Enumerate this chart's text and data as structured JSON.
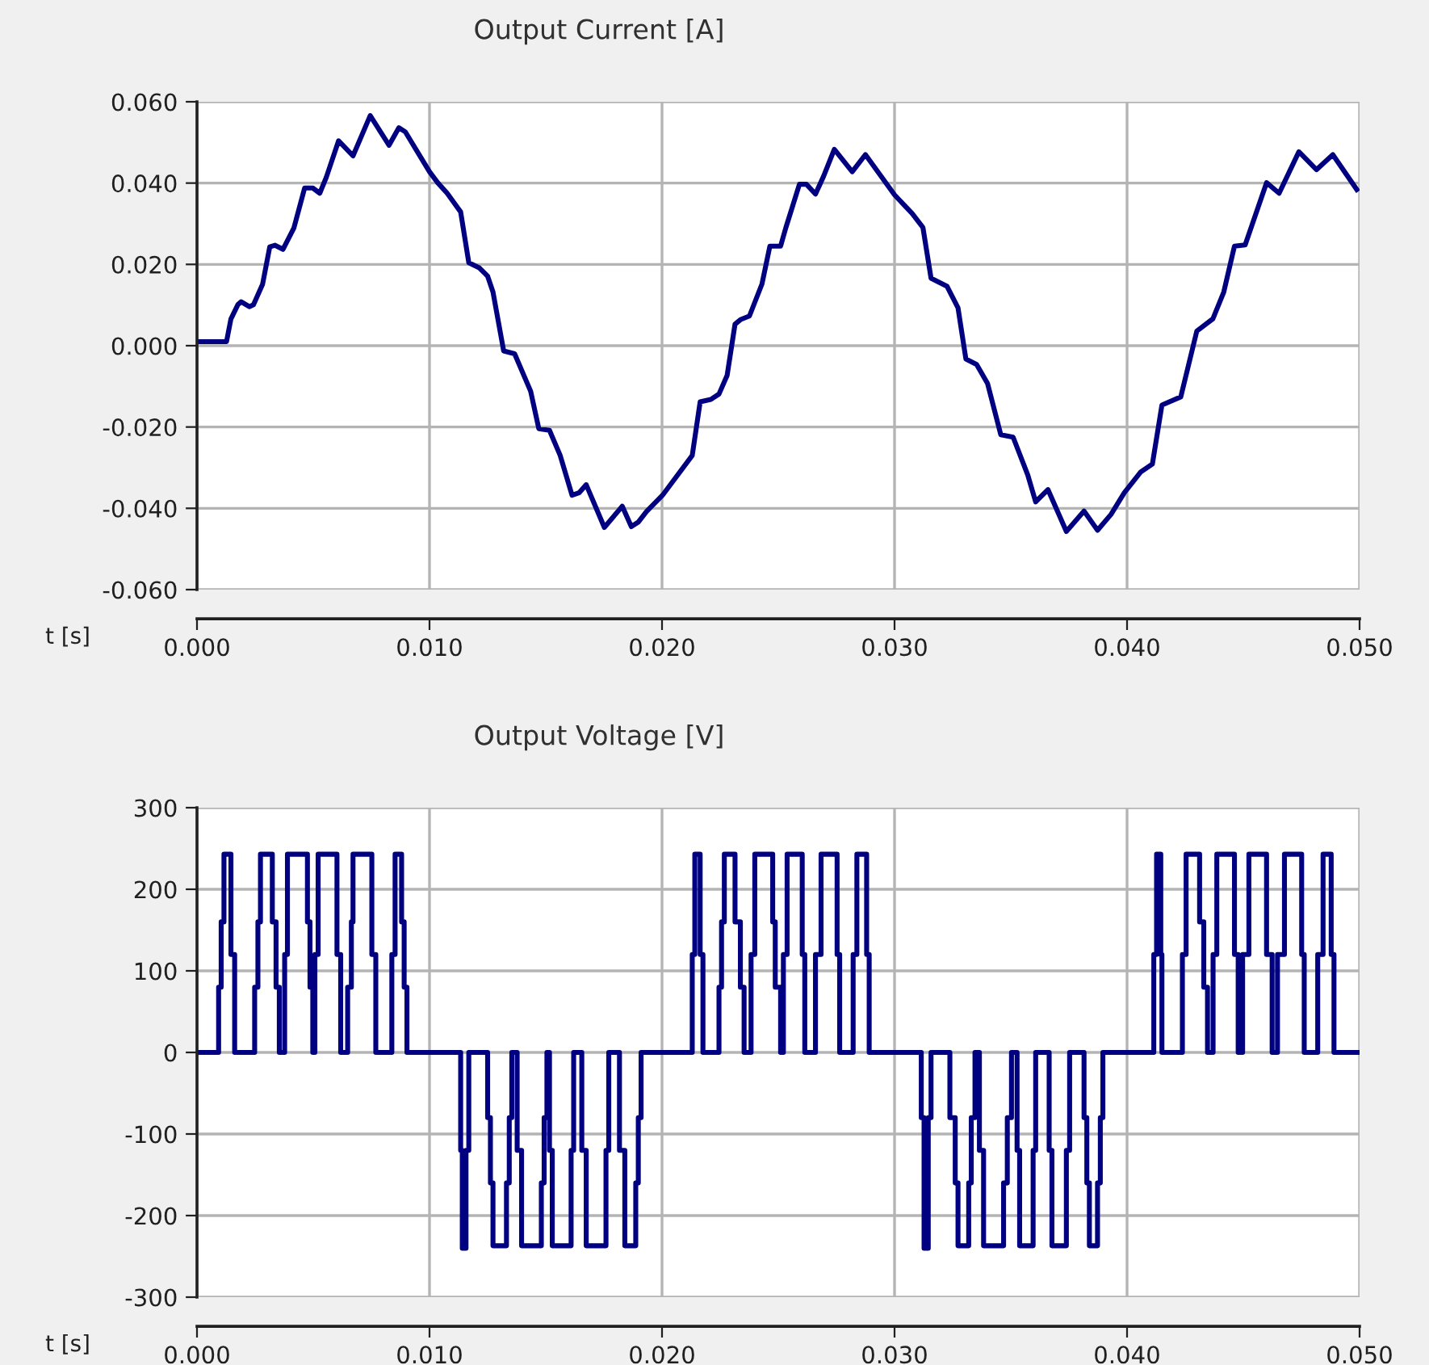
{
  "chart_data": [
    {
      "type": "line",
      "title": "Output Current [A]",
      "xlabel": "t [s]",
      "color": "#000080",
      "grid": true,
      "marker": "none",
      "line_style": "solid",
      "x": [
        0,
        0.00127,
        0.00146,
        0.00176,
        0.0019,
        0.00225,
        0.00243,
        0.00282,
        0.00313,
        0.00336,
        0.0037,
        0.00417,
        0.00463,
        0.00498,
        0.00528,
        0.00556,
        0.00609,
        0.00671,
        0.00745,
        0.00826,
        0.00868,
        0.00896,
        0.01,
        0.01035,
        0.01076,
        0.01134,
        0.01169,
        0.01215,
        0.0125,
        0.01273,
        0.01319,
        0.01366,
        0.01435,
        0.0147,
        0.01516,
        0.01562,
        0.01613,
        0.01643,
        0.01674,
        0.01752,
        0.01829,
        0.01868,
        0.01898,
        0.01933,
        0.02002,
        0.0213,
        0.02164,
        0.0221,
        0.02245,
        0.0228,
        0.02314,
        0.02337,
        0.02376,
        0.0243,
        0.02464,
        0.0251,
        0.02533,
        0.02591,
        0.02621,
        0.0266,
        0.02695,
        0.02741,
        0.02818,
        0.02875,
        0.03,
        0.03076,
        0.03122,
        0.03157,
        0.03226,
        0.03273,
        0.03307,
        0.03353,
        0.034,
        0.03457,
        0.0351,
        0.03573,
        0.03607,
        0.0366,
        0.03739,
        0.03815,
        0.03873,
        0.03931,
        0.03988,
        0.04058,
        0.04109,
        0.0415,
        0.04231,
        0.043,
        0.04369,
        0.04416,
        0.04462,
        0.04508,
        0.046,
        0.04654,
        0.04739,
        0.04815,
        0.04885,
        0.04988
      ],
      "values": [
        0.001,
        0.001,
        0.0066,
        0.0101,
        0.0108,
        0.0096,
        0.0101,
        0.0151,
        0.0243,
        0.0247,
        0.0237,
        0.029,
        0.0388,
        0.0388,
        0.0375,
        0.0414,
        0.0504,
        0.0467,
        0.0566,
        0.0493,
        0.0536,
        0.0526,
        0.0428,
        0.0401,
        0.0375,
        0.0329,
        0.0204,
        0.0191,
        0.0171,
        0.0132,
        -0.0013,
        -0.002,
        -0.0112,
        -0.0204,
        -0.0208,
        -0.027,
        -0.0368,
        -0.0362,
        -0.0342,
        -0.0447,
        -0.0395,
        -0.0445,
        -0.0434,
        -0.0408,
        -0.0368,
        -0.027,
        -0.0138,
        -0.0132,
        -0.0119,
        -0.0073,
        0.0053,
        0.0064,
        0.0073,
        0.0152,
        0.0245,
        0.0245,
        0.0291,
        0.0397,
        0.0397,
        0.0373,
        0.0417,
        0.0483,
        0.0428,
        0.047,
        0.0371,
        0.0325,
        0.0291,
        0.0166,
        0.0146,
        0.0093,
        -0.0033,
        -0.0046,
        -0.0093,
        -0.0219,
        -0.0225,
        -0.0318,
        -0.0384,
        -0.0354,
        -0.0457,
        -0.0407,
        -0.0454,
        -0.0415,
        -0.0362,
        -0.0311,
        -0.0291,
        -0.0146,
        -0.0126,
        0.0036,
        0.0066,
        0.0132,
        0.0245,
        0.0248,
        0.0401,
        0.0375,
        0.0477,
        0.0433,
        0.047,
        0.0384
      ],
      "xlim": [
        0,
        0.05
      ],
      "xticks": [
        {
          "value": 0,
          "label": "0.000"
        },
        {
          "value": 0.01,
          "label": "0.010"
        },
        {
          "value": 0.02,
          "label": "0.020"
        },
        {
          "value": 0.03,
          "label": "0.030"
        },
        {
          "value": 0.04,
          "label": "0.040"
        },
        {
          "value": 0.05,
          "label": "0.050"
        }
      ],
      "ylim": [
        -0.06,
        0.06
      ],
      "yticks": [
        {
          "value": -0.06,
          "label": "-0.060"
        },
        {
          "value": -0.04,
          "label": "-0.040"
        },
        {
          "value": -0.02,
          "label": "-0.020"
        },
        {
          "value": 0,
          "label": "0.000"
        },
        {
          "value": 0.02,
          "label": "0.020"
        },
        {
          "value": 0.04,
          "label": "0.040"
        },
        {
          "value": 0.06,
          "label": "0.060"
        }
      ]
    },
    {
      "type": "step",
      "title": "Output Voltage [V]",
      "xlabel": "t [s]",
      "color": "#000080",
      "grid": true,
      "marker": "none",
      "line_style": "solid",
      "x": [
        0,
        0.00093,
        0.00104,
        0.00116,
        0.00146,
        0.00162,
        0.00248,
        0.00262,
        0.00273,
        0.00324,
        0.0034,
        0.00354,
        0.00377,
        0.00389,
        0.00475,
        0.00486,
        0.00498,
        0.00507,
        0.00521,
        0.00602,
        0.00618,
        0.00648,
        0.00664,
        0.00671,
        0.00752,
        0.00769,
        0.00838,
        0.00852,
        0.0088,
        0.00891,
        0.00903,
        0.01134,
        0.01141,
        0.01157,
        0.01169,
        0.0125,
        0.01262,
        0.01273,
        0.01331,
        0.01343,
        0.01354,
        0.01377,
        0.01396,
        0.01481,
        0.01493,
        0.01505,
        0.01516,
        0.01528,
        0.01609,
        0.0162,
        0.01655,
        0.01674,
        0.01759,
        0.01771,
        0.01817,
        0.0184,
        0.01887,
        0.01898,
        0.0191,
        0.0213,
        0.02141,
        0.02164,
        0.02176,
        0.02245,
        0.02256,
        0.02268,
        0.02314,
        0.02337,
        0.02353,
        0.02383,
        0.02399,
        0.02476,
        0.02487,
        0.0251,
        0.02522,
        0.02538,
        0.02603,
        0.02614,
        0.0266,
        0.02684,
        0.02753,
        0.02764,
        0.02822,
        0.02838,
        0.0288,
        0.02891,
        0.03115,
        0.03127,
        0.03145,
        0.03157,
        0.03238,
        0.03261,
        0.03273,
        0.03319,
        0.0333,
        0.03346,
        0.03365,
        0.03383,
        0.03469,
        0.03485,
        0.03503,
        0.03527,
        0.03538,
        0.03596,
        0.03607,
        0.03665,
        0.03677,
        0.03739,
        0.03753,
        0.03815,
        0.03827,
        0.03838,
        0.03873,
        0.03885,
        0.03896,
        0.04115,
        0.04127,
        0.04145,
        0.0415,
        0.04238,
        0.04254,
        0.04312,
        0.0433,
        0.04346,
        0.0437,
        0.04386,
        0.04462,
        0.04478,
        0.04497,
        0.04524,
        0.046,
        0.04624,
        0.04647,
        0.04677,
        0.04751,
        0.04762,
        0.0482,
        0.04843,
        0.04878,
        0.0489,
        0.05
      ],
      "values": [
        0,
        80,
        160,
        243,
        120,
        0,
        80,
        160,
        243,
        160,
        80,
        0,
        120,
        243,
        160,
        80,
        0,
        120,
        243,
        120,
        0,
        80,
        160,
        243,
        120,
        0,
        120,
        243,
        160,
        80,
        0,
        -120,
        -240,
        -120,
        0,
        -80,
        -160,
        -237,
        -160,
        -80,
        0,
        -120,
        -237,
        -160,
        -80,
        0,
        -120,
        -237,
        -120,
        0,
        -120,
        -237,
        -120,
        0,
        -120,
        -237,
        -160,
        -80,
        0,
        120,
        243,
        120,
        0,
        80,
        160,
        243,
        160,
        80,
        0,
        120,
        243,
        160,
        80,
        0,
        120,
        243,
        120,
        0,
        120,
        243,
        120,
        0,
        120,
        243,
        120,
        0,
        -80,
        -240,
        -80,
        0,
        -80,
        -160,
        -237,
        -160,
        -80,
        0,
        -120,
        -237,
        -160,
        -80,
        0,
        -120,
        -237,
        -120,
        0,
        -120,
        -237,
        -120,
        0,
        -80,
        -160,
        -237,
        -160,
        -80,
        0,
        120,
        243,
        120,
        0,
        120,
        243,
        160,
        80,
        0,
        120,
        243,
        120,
        0,
        120,
        243,
        120,
        0,
        120,
        243,
        120,
        0,
        120,
        243,
        120,
        0,
        0
      ],
      "xlim": [
        0,
        0.05
      ],
      "xticks": [
        {
          "value": 0,
          "label": "0.000"
        },
        {
          "value": 0.01,
          "label": "0.010"
        },
        {
          "value": 0.02,
          "label": "0.020"
        },
        {
          "value": 0.03,
          "label": "0.030"
        },
        {
          "value": 0.04,
          "label": "0.040"
        },
        {
          "value": 0.05,
          "label": "0.050"
        }
      ],
      "ylim": [
        -300,
        300
      ],
      "yticks": [
        -300,
        -200,
        -100,
        0,
        100,
        200,
        300
      ]
    }
  ]
}
